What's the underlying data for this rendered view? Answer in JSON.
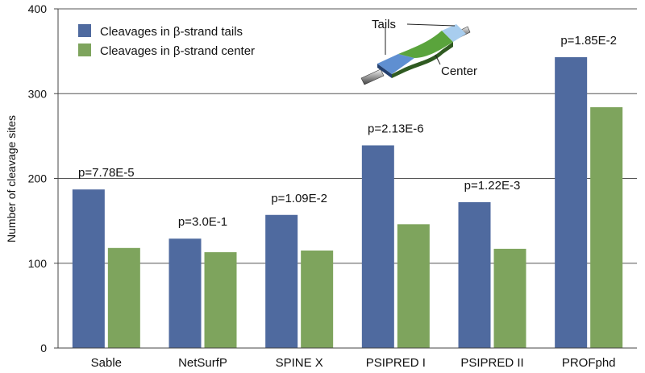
{
  "chart_data": {
    "type": "bar",
    "ylabel": "Number of cleavage sites",
    "ylim": [
      0,
      400
    ],
    "yticks": [
      0,
      100,
      200,
      300,
      400
    ],
    "grid": true,
    "legend_position": "top-left",
    "categories": [
      "Sable",
      "NetSurfP",
      "SPINE X",
      "PSIPRED I",
      "PSIPRED II",
      "PROFphd"
    ],
    "series": [
      {
        "name": "Cleavages in β-strand tails",
        "color": "#4f6a9f",
        "values": [
          187,
          129,
          157,
          239,
          172,
          343
        ]
      },
      {
        "name": "Cleavages in β-strand center",
        "color": "#7ea45d",
        "values": [
          118,
          113,
          115,
          146,
          117,
          284
        ]
      }
    ],
    "annotations": [
      "p=7.78E-5",
      "p=3.0E-1",
      "p=1.09E-2",
      "p=2.13E-6",
      "p=1.22E-3",
      "p=1.85E-2"
    ],
    "inset": {
      "tails_label": "Tails",
      "center_label": "Center"
    }
  }
}
